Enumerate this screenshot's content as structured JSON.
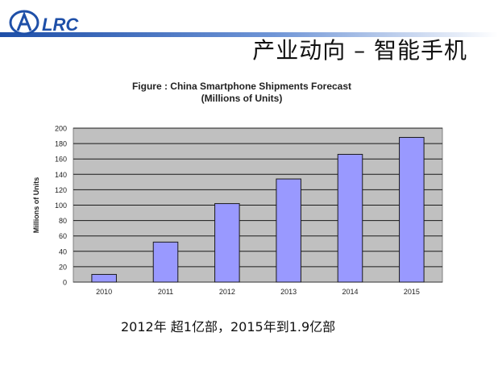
{
  "header": {
    "logo_text": "LRC",
    "slide_title": "产业动向 – 智能手机"
  },
  "chart_data": {
    "type": "bar",
    "title_line1": "Figure  : China Smartphone Shipments Forecast",
    "title_line2": "(Millions of Units)",
    "xlabel": "",
    "ylabel": "Millions of Units",
    "categories": [
      "2010",
      "2011",
      "2012",
      "2013",
      "2014",
      "2015"
    ],
    "values": [
      10,
      52,
      102,
      134,
      166,
      188
    ],
    "ylim": [
      0,
      200
    ],
    "yticks": [
      0,
      20,
      40,
      60,
      80,
      100,
      120,
      140,
      160,
      180,
      200
    ],
    "grid": true,
    "legend": "none",
    "colors": {
      "bar_fill": "#9999ff",
      "bar_stroke": "#1a1a1a",
      "plot_bg": "#c0c0c0",
      "grid": "#1a1a1a"
    }
  },
  "caption": "2012年 超1亿部，2015年到1.9亿部"
}
